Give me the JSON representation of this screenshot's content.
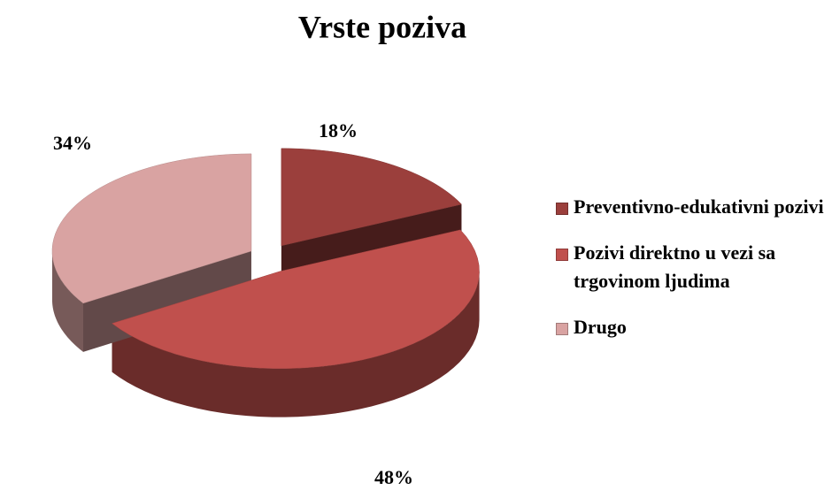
{
  "chart_data": {
    "type": "pie3d",
    "title": "Vrste poziva",
    "categories": [
      "Preventivno-edukativni pozivi",
      "Pozivi direktno u vezi sa trgovinom ljudima",
      "Drugo"
    ],
    "values": [
      18,
      48,
      34
    ],
    "value_labels": [
      "18%",
      "48%",
      "34%"
    ],
    "colors": [
      "#9b3f3c",
      "#c0504d",
      "#d9a3a2"
    ],
    "legend": "right"
  }
}
